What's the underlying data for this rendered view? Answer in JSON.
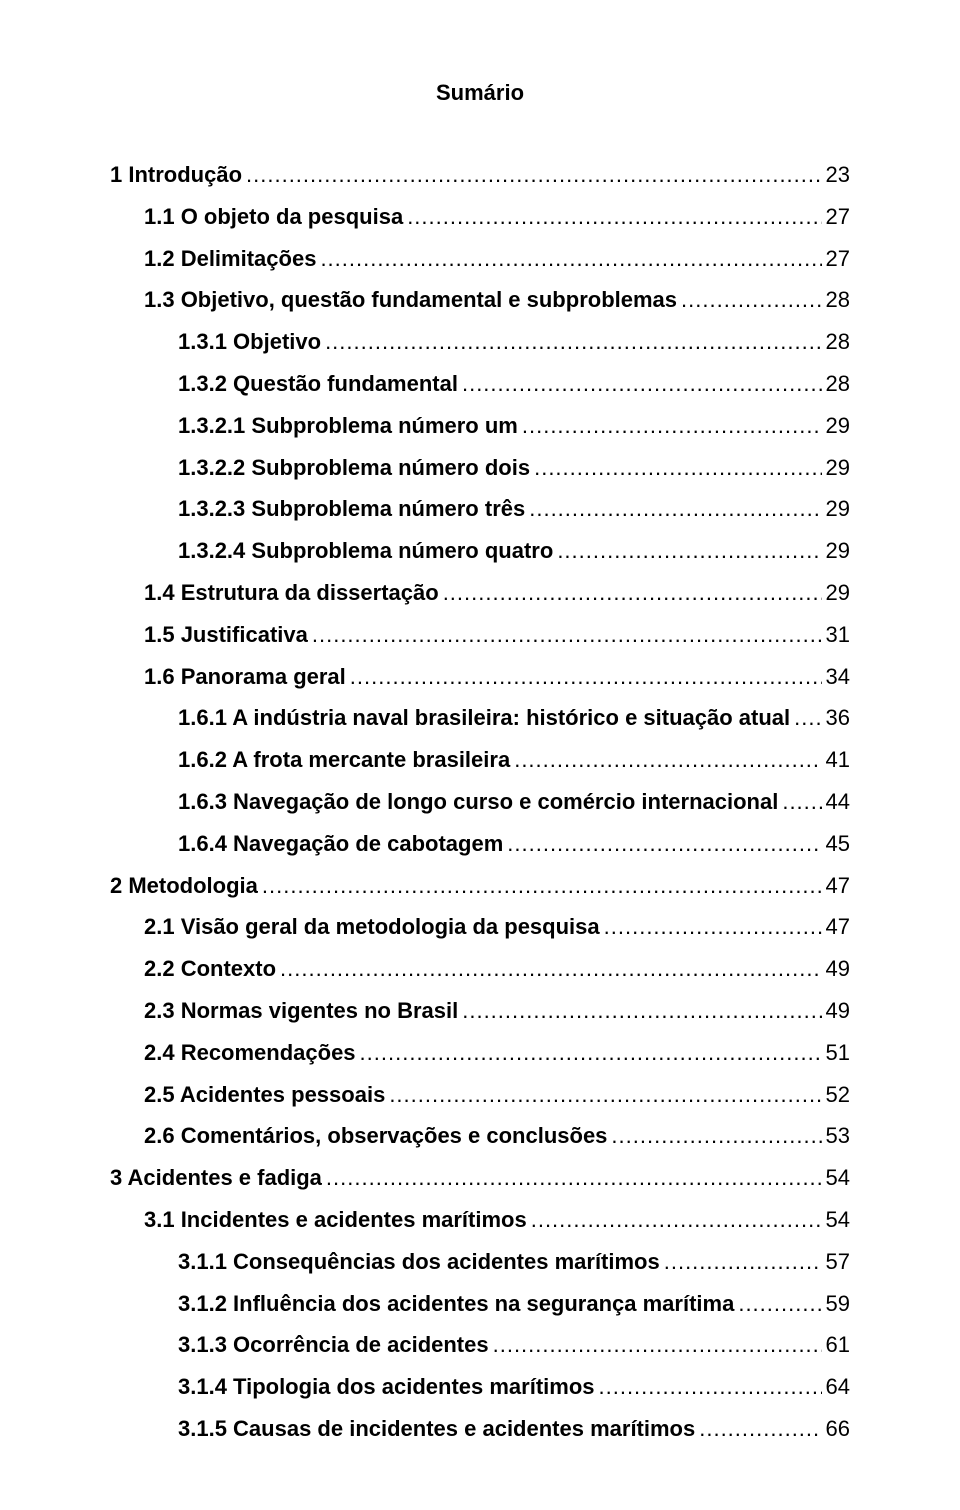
{
  "title": "Sumário",
  "entries": [
    {
      "indent": 0,
      "label": "1 Introdução",
      "page": " 23"
    },
    {
      "indent": 1,
      "label": "1.1 O objeto da pesquisa",
      "page": "27"
    },
    {
      "indent": 1,
      "label": "1.2 Delimitações",
      "page": "27"
    },
    {
      "indent": 1,
      "label": "1.3 Objetivo, questão fundamental e subproblemas",
      "page": "28"
    },
    {
      "indent": 2,
      "label": "1.3.1 Objetivo",
      "page": "28"
    },
    {
      "indent": 2,
      "label": "1.3.2 Questão fundamental",
      "page": "28"
    },
    {
      "indent": 2,
      "label": "1.3.2.1 Subproblema número um",
      "page": "29"
    },
    {
      "indent": 2,
      "label": "1.3.2.2 Subproblema número dois",
      "page": "29"
    },
    {
      "indent": 2,
      "label": "1.3.2.3 Subproblema número três",
      "page": "29"
    },
    {
      "indent": 2,
      "label": "1.3.2.4 Subproblema número quatro",
      "page": "29"
    },
    {
      "indent": 1,
      "label": "1.4 Estrutura da dissertação",
      "page": "29"
    },
    {
      "indent": 1,
      "label": "1.5 Justificativa",
      "page": "31"
    },
    {
      "indent": 1,
      "label": "1.6 Panorama geral",
      "page": "34"
    },
    {
      "indent": 2,
      "label": "1.6.1 A indústria naval brasileira: histórico e situação atual",
      "page": "36"
    },
    {
      "indent": 2,
      "label": "1.6.2 A frota mercante brasileira",
      "page": "41"
    },
    {
      "indent": 2,
      "label": "1.6.3 Navegação de longo curso e comércio internacional",
      "page": "44"
    },
    {
      "indent": 2,
      "label": "1.6.4 Navegação de cabotagem",
      "page": "45"
    },
    {
      "indent": 0,
      "label": "2 Metodologia",
      "page": "47"
    },
    {
      "indent": 1,
      "label": "2.1 Visão geral da metodologia da pesquisa",
      "page": "47"
    },
    {
      "indent": 1,
      "label": "2.2 Contexto",
      "page": "49"
    },
    {
      "indent": 1,
      "label": "2.3 Normas vigentes no Brasil",
      "page": "49"
    },
    {
      "indent": 1,
      "label": "2.4 Recomendações",
      "page": "51"
    },
    {
      "indent": 1,
      "label": "2.5 Acidentes pessoais",
      "page": "52"
    },
    {
      "indent": 1,
      "label": "2.6 Comentários, observações e conclusões",
      "page": "53"
    },
    {
      "indent": 0,
      "label": "3 Acidentes e fadiga",
      "page": "54"
    },
    {
      "indent": 1,
      "label": "3.1 Incidentes e acidentes marítimos",
      "page": "54"
    },
    {
      "indent": 2,
      "label": "3.1.1 Consequências dos acidentes marítimos",
      "page": "57"
    },
    {
      "indent": 2,
      "label": "3.1.2 Influência dos acidentes na segurança marítima",
      "page": "59"
    },
    {
      "indent": 2,
      "label": "3.1.3 Ocorrência de acidentes",
      "page": "61"
    },
    {
      "indent": 2,
      "label": "3.1.4 Tipologia dos acidentes marítimos",
      "page": "64"
    },
    {
      "indent": 2,
      "label": "3.1.5 Causas de incidentes e acidentes marítimos",
      "page": "66"
    }
  ]
}
